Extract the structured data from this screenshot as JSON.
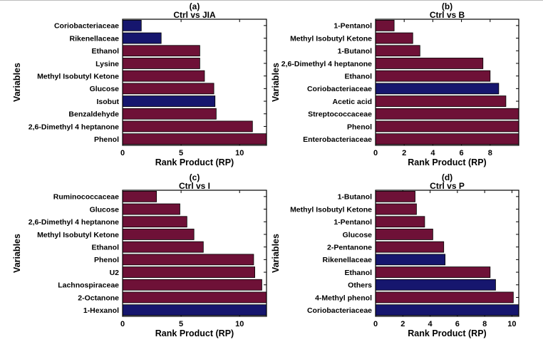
{
  "figure": {
    "xlabel": "Rank Product (RP)",
    "ylabel": "Variables",
    "colors": {
      "maroon": "#6E1137",
      "navy": "#16166E",
      "axis": "#000000",
      "background": "#FFFFFF"
    }
  },
  "chart_data": [
    {
      "type": "bar",
      "orientation": "horizontal",
      "panel_label": "(a)",
      "title": "Ctrl vs JIA",
      "xlabel": "Rank Product (RP)",
      "ylabel": "Variables",
      "categories": [
        "Coriobacteriaceae",
        "Rikenellaceae",
        "Ethanol",
        "Lysine",
        "Methyl Isobutyl Ketone",
        "Glucose",
        "Isobut",
        "Benzaldehyde",
        "2,6-Dimethyl 4 heptanone",
        "Phenol"
      ],
      "values": [
        1.6,
        3.3,
        6.6,
        6.6,
        7.0,
        7.8,
        7.9,
        8.0,
        11.1,
        12.3
      ],
      "bar_colors": [
        "navy",
        "navy",
        "maroon",
        "maroon",
        "maroon",
        "maroon",
        "navy",
        "maroon",
        "maroon",
        "maroon"
      ],
      "xlim": [
        0,
        12.3
      ],
      "xticks": [
        0,
        5,
        10
      ],
      "grid": false,
      "legend": null
    },
    {
      "type": "bar",
      "orientation": "horizontal",
      "panel_label": "(b)",
      "title": "Ctrl vs B",
      "xlabel": "Rank Product (RP)",
      "ylabel": "Variables",
      "categories": [
        "1-Pentanol",
        "Methyl Isobutyl Ketone",
        "1-Butanol",
        "2,6-Dimethyl 4 heptanone",
        "Ethanol",
        "Coriobacteriaceae",
        "Acetic acid",
        "Streptococcaceae",
        "Phenol",
        "Enterobacteriaceae"
      ],
      "values": [
        1.3,
        2.6,
        3.1,
        7.5,
        8.0,
        8.6,
        9.1,
        10.0,
        10.0,
        10.0
      ],
      "bar_colors": [
        "maroon",
        "maroon",
        "maroon",
        "maroon",
        "maroon",
        "navy",
        "maroon",
        "maroon",
        "maroon",
        "maroon"
      ],
      "xlim": [
        0,
        10
      ],
      "xticks": [
        0,
        2,
        4,
        6,
        8
      ],
      "grid": false,
      "legend": null
    },
    {
      "type": "bar",
      "orientation": "horizontal",
      "panel_label": "(c)",
      "title": "Ctrl vs I",
      "xlabel": "Rank Product (RP)",
      "ylabel": "Variables",
      "categories": [
        "Ruminococcaceae",
        "Glucose",
        "2,6-Dimethyl 4 heptanone",
        "Methyl Isobutyl Ketone",
        "Ethanol",
        "Phenol",
        "U2",
        "Lachnospiraceae",
        "2-Octanone",
        "1-Hexanol"
      ],
      "values": [
        2.9,
        4.9,
        5.5,
        6.1,
        6.9,
        11.2,
        11.3,
        11.9,
        12.3,
        12.3
      ],
      "bar_colors": [
        "maroon",
        "maroon",
        "maroon",
        "maroon",
        "maroon",
        "maroon",
        "maroon",
        "maroon",
        "maroon",
        "navy"
      ],
      "xlim": [
        0,
        12.3
      ],
      "xticks": [
        0,
        5,
        10
      ],
      "grid": false,
      "legend": null
    },
    {
      "type": "bar",
      "orientation": "horizontal",
      "panel_label": "(d)",
      "title": "Ctrl vs P",
      "xlabel": "Rank Product (RP)",
      "ylabel": "Variables",
      "categories": [
        "1-Butanol",
        "Methyl Isobutyl Ketone",
        "1-Pentanol",
        "Glucose",
        "2-Pentanone",
        "Rikenellaceae",
        "Ethanol",
        "Others",
        "4-Methyl phenol",
        "Coriobacteriaceae"
      ],
      "values": [
        2.9,
        3.0,
        3.6,
        4.2,
        5.0,
        5.1,
        8.4,
        8.8,
        10.1,
        10.5
      ],
      "bar_colors": [
        "maroon",
        "maroon",
        "maroon",
        "maroon",
        "maroon",
        "navy",
        "maroon",
        "navy",
        "maroon",
        "navy"
      ],
      "xlim": [
        0,
        10.5
      ],
      "xticks": [
        0,
        2,
        4,
        6,
        8,
        10
      ],
      "grid": false,
      "legend": null
    }
  ]
}
